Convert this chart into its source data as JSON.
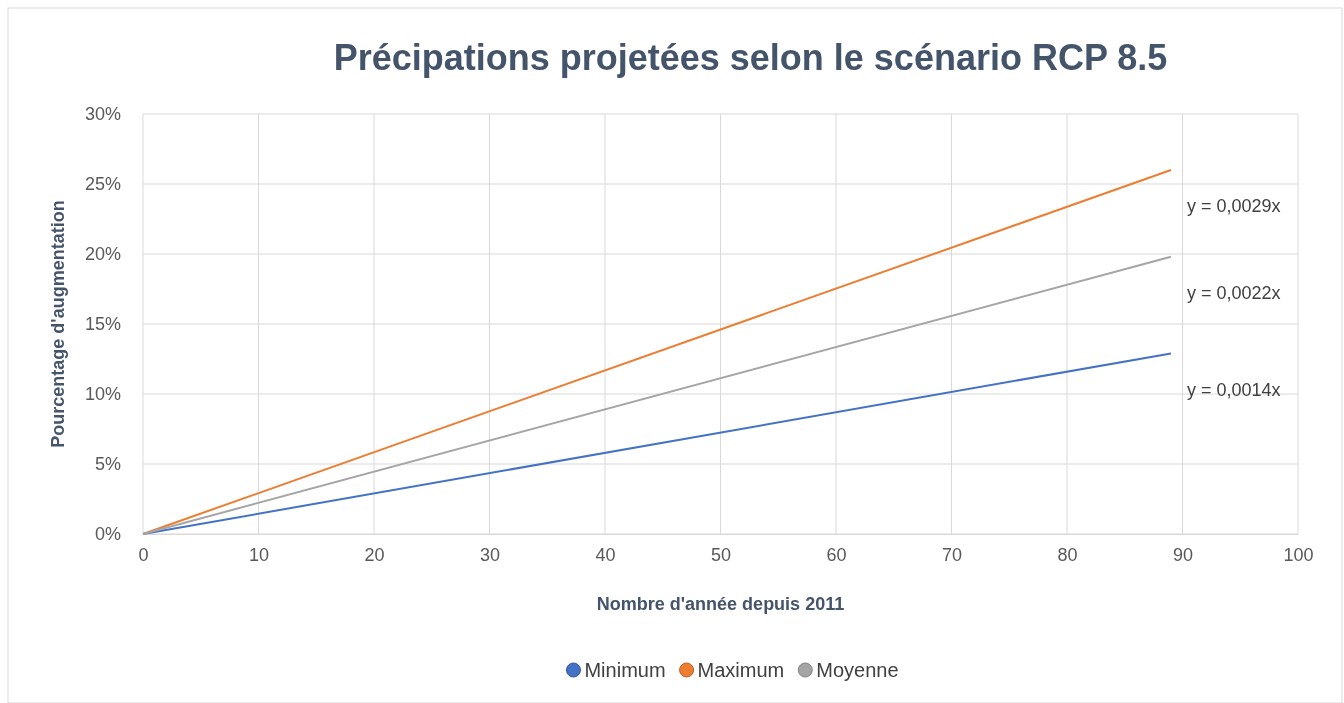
{
  "chart_data": {
    "type": "line",
    "title": "Précipations projetées selon le scénario RCP 8.5",
    "xlabel": "Nombre d'année depuis 2011",
    "ylabel": "Pourcentage d'augmentation",
    "x": [
      0,
      89
    ],
    "series": [
      {
        "name": "Minimum",
        "color": "#4472c4",
        "values": [
          0,
          12.9
        ]
      },
      {
        "name": "Maximum",
        "color": "#ed7d31",
        "values": [
          0,
          26
        ]
      },
      {
        "name": "Moyenne",
        "color": "#a5a5a5",
        "values": [
          0,
          19.8
        ]
      }
    ],
    "xlim": [
      0,
      100
    ],
    "xticks": [
      0,
      10,
      20,
      30,
      40,
      50,
      60,
      70,
      80,
      90,
      100
    ],
    "ylim": [
      0,
      30
    ],
    "yticks": [
      {
        "value": 0,
        "label": "0%"
      },
      {
        "value": 5,
        "label": "5%"
      },
      {
        "value": 10,
        "label": "10%"
      },
      {
        "value": 15,
        "label": "15%"
      },
      {
        "value": 20,
        "label": "20%"
      },
      {
        "value": 25,
        "label": "25%"
      },
      {
        "value": 30,
        "label": "30%"
      }
    ],
    "annotations": [
      "y = 0,0029x",
      "y = 0,0022x",
      "y = 0,0014x"
    ],
    "grid": true,
    "legend": "bottom",
    "marker": "none",
    "line_style": "solid"
  }
}
